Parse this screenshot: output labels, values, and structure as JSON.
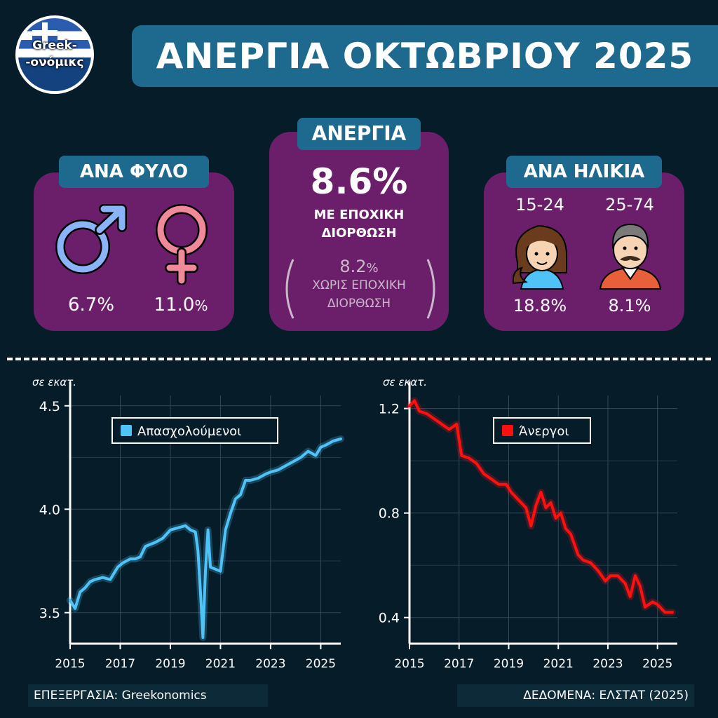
{
  "header": {
    "logo_line1": "Greek-",
    "logo_line2": "-ονόμικς",
    "title": "ΑΝΕΡΓΙΑ ΟΚΤΩΒΡΙΟΥ 2025"
  },
  "gender_card": {
    "label": "ΑΝΑ ΦΥΛΟ",
    "male_value": "6.7%",
    "female_value": "11.0",
    "female_unit": "%",
    "male_icon": "male-symbol-icon",
    "female_icon": "female-symbol-icon",
    "male_color": "#8ab4f8",
    "female_color": "#f0899a"
  },
  "main_card": {
    "label": "ΑΝΕΡΓΙΑ",
    "value": "8.6%",
    "sa_line1": "ΜΕ ΕΠΟΧΙΚΗ",
    "sa_line2": "ΔΙΟΡΘΩΣΗ",
    "nsa_value": "8.2",
    "nsa_unit": "%",
    "nsa_line1": "ΧΩΡΙΣ ΕΠΟΧΙΚΗ",
    "nsa_line2": "ΔΙΟΡΘΩΣΗ"
  },
  "age_card": {
    "label": "ΑΝΑ ΗΛΙΚΙΑ",
    "young_label": "15-24",
    "old_label": "25-74",
    "young_value": "18.8%",
    "old_value": "8.1%",
    "young_icon": "young-woman-icon",
    "old_icon": "older-man-icon"
  },
  "footer": {
    "left": "ΕΠΕΞΕΡΓΑΣΙΑ: Greekonomics",
    "right": "ΔΕΔΟΜΕΝΑ: ΕΛΣΤΑΤ (2025)"
  },
  "chart_data": [
    {
      "type": "line",
      "unit_label": "σε εκατ.",
      "legend": "Απασχολούμενοι",
      "color": "#4fc3f7",
      "xlim": [
        2015,
        2025.8
      ],
      "ylim": [
        3.35,
        4.55
      ],
      "yticks": [
        3.5,
        4.0,
        4.5
      ],
      "ytick_labels": [
        "3.5",
        "4.0",
        "4.5"
      ],
      "xticks": [
        2015,
        2017,
        2019,
        2021,
        2023,
        2025
      ],
      "xtick_labels": [
        "2015",
        "2017",
        "2019",
        "2021",
        "2023",
        "2025"
      ],
      "grid": true,
      "legend_position": "top-left",
      "x": [
        2015.0,
        2015.2,
        2015.4,
        2015.6,
        2015.8,
        2016.0,
        2016.3,
        2016.6,
        2016.9,
        2017.1,
        2017.4,
        2017.6,
        2017.8,
        2018.0,
        2018.2,
        2018.4,
        2018.7,
        2019.0,
        2019.3,
        2019.6,
        2019.8,
        2020.0,
        2020.1,
        2020.2,
        2020.3,
        2020.4,
        2020.5,
        2020.6,
        2020.8,
        2021.0,
        2021.2,
        2021.4,
        2021.6,
        2021.8,
        2022.0,
        2022.2,
        2022.5,
        2022.8,
        2023.0,
        2023.3,
        2023.6,
        2023.9,
        2024.2,
        2024.5,
        2024.8,
        2025.0,
        2025.2,
        2025.5,
        2025.8
      ],
      "values": [
        3.56,
        3.52,
        3.6,
        3.62,
        3.65,
        3.66,
        3.67,
        3.66,
        3.72,
        3.74,
        3.76,
        3.76,
        3.77,
        3.82,
        3.83,
        3.84,
        3.86,
        3.9,
        3.91,
        3.92,
        3.9,
        3.89,
        3.8,
        3.6,
        3.38,
        3.7,
        3.9,
        3.72,
        3.71,
        3.7,
        3.9,
        3.98,
        4.05,
        4.07,
        4.14,
        4.14,
        4.15,
        4.17,
        4.18,
        4.19,
        4.21,
        4.23,
        4.25,
        4.28,
        4.26,
        4.3,
        4.31,
        4.33,
        4.34
      ]
    },
    {
      "type": "line",
      "unit_label": "σε εκατ.",
      "legend": "Άνεργοι",
      "color": "#ff1010",
      "xlim": [
        2015,
        2025.8
      ],
      "ylim": [
        0.3,
        1.25
      ],
      "yticks": [
        0.4,
        0.8,
        1.2
      ],
      "ytick_labels": [
        "0.4",
        "0.8",
        "1.2"
      ],
      "xticks": [
        2015,
        2017,
        2019,
        2021,
        2023,
        2025
      ],
      "xtick_labels": [
        "2015",
        "2017",
        "2019",
        "2021",
        "2023",
        "2025"
      ],
      "grid": true,
      "legend_position": "top-right",
      "x": [
        2015.0,
        2015.2,
        2015.4,
        2015.7,
        2016.0,
        2016.3,
        2016.6,
        2016.9,
        2017.1,
        2017.4,
        2017.7,
        2018.0,
        2018.3,
        2018.6,
        2018.9,
        2019.1,
        2019.4,
        2019.7,
        2019.9,
        2020.1,
        2020.3,
        2020.5,
        2020.7,
        2020.9,
        2021.1,
        2021.3,
        2021.5,
        2021.8,
        2022.0,
        2022.3,
        2022.6,
        2022.9,
        2023.1,
        2023.4,
        2023.7,
        2023.9,
        2024.1,
        2024.3,
        2024.5,
        2024.8,
        2025.0,
        2025.3,
        2025.6
      ],
      "values": [
        1.21,
        1.23,
        1.19,
        1.18,
        1.16,
        1.14,
        1.12,
        1.14,
        1.02,
        1.01,
        0.99,
        0.95,
        0.93,
        0.91,
        0.91,
        0.88,
        0.85,
        0.82,
        0.75,
        0.83,
        0.88,
        0.82,
        0.84,
        0.78,
        0.8,
        0.74,
        0.72,
        0.64,
        0.62,
        0.61,
        0.58,
        0.54,
        0.56,
        0.56,
        0.53,
        0.48,
        0.56,
        0.52,
        0.44,
        0.46,
        0.45,
        0.42,
        0.42
      ]
    }
  ]
}
